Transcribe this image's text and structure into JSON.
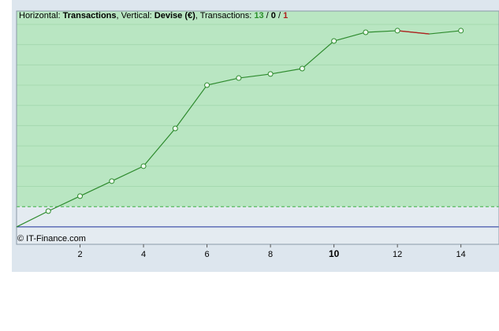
{
  "chart_data": {
    "type": "line",
    "header": [
      {
        "text": "Horizontal: "
      },
      {
        "text": "Transactions",
        "bold": true
      },
      {
        "text": ", Vertical: "
      },
      {
        "text": "Devise (€)",
        "bold": true
      },
      {
        "text": ", Transactions: "
      },
      {
        "value": 13,
        "color": "#2a8f2a",
        "bold": true
      },
      {
        "text": " / "
      },
      {
        "value": 0,
        "color": "#000000",
        "bold": true
      },
      {
        "text": " / "
      },
      {
        "value": 1,
        "color": "#b01c1c",
        "bold": true
      }
    ],
    "watermark": "© IT-Finance.com",
    "x": [
      0,
      1,
      2,
      3,
      4,
      5,
      6,
      7,
      8,
      9,
      10,
      11,
      12,
      13,
      14
    ],
    "series": [
      {
        "color": "#2e8b2e",
        "values": [
          0,
          0.78,
          1.52,
          2.26,
          3.0,
          4.86,
          7.0,
          7.35,
          7.55,
          7.82,
          9.18,
          9.61,
          9.69,
          9.53,
          9.69
        ]
      }
    ],
    "loss_color": "#b22222",
    "losses": [
      13
    ],
    "xlim": [
      0,
      15.2
    ],
    "xticks": [
      2,
      4,
      6,
      8,
      10,
      12,
      14
    ],
    "highlight_xtick": 10,
    "ylim": [
      -0.86,
      10.66
    ],
    "ygrid": [
      2,
      3,
      4,
      5,
      6,
      7,
      8,
      9,
      10
    ],
    "threshold": 1,
    "baseline": 0
  }
}
